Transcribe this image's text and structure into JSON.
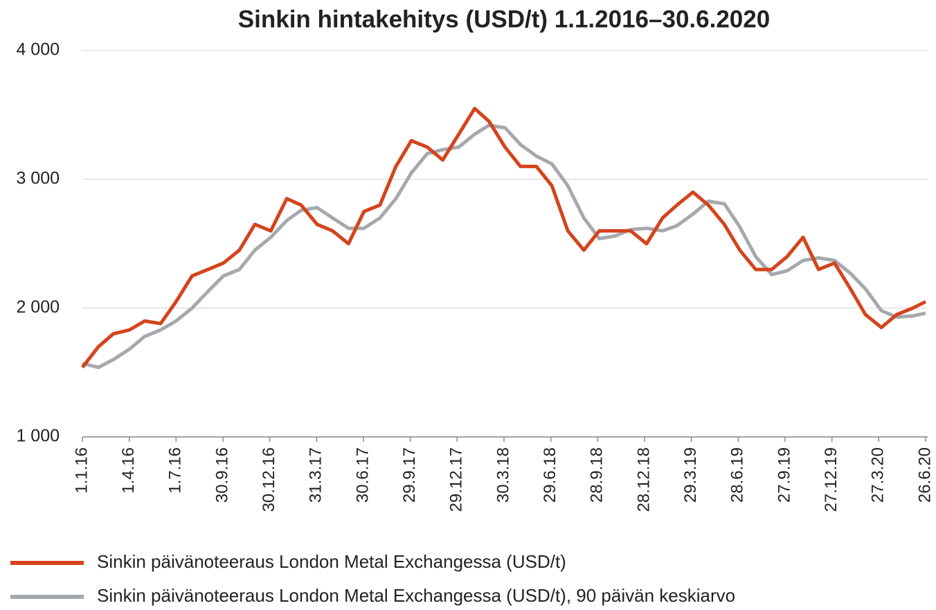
{
  "chart_data": {
    "type": "line",
    "title": "Sinkin hintakehitys (USD/t) 1.1.2016–30.6.2020",
    "x": [
      "1.1.16",
      "1.2.16",
      "1.3.16",
      "1.4.16",
      "1.5.16",
      "1.6.16",
      "1.7.16",
      "1.8.16",
      "1.9.16",
      "1.10.16",
      "1.11.16",
      "1.12.16",
      "1.1.17",
      "1.2.17",
      "1.3.17",
      "1.4.17",
      "1.5.17",
      "1.6.17",
      "1.7.17",
      "1.8.17",
      "1.9.17",
      "1.10.17",
      "1.11.17",
      "1.12.17",
      "1.1.18",
      "1.2.18",
      "1.3.18",
      "1.4.18",
      "1.5.18",
      "1.6.18",
      "1.7.18",
      "1.8.18",
      "1.9.18",
      "1.10.18",
      "1.11.18",
      "1.12.18",
      "1.1.19",
      "1.2.19",
      "1.3.19",
      "1.4.19",
      "1.5.19",
      "1.6.19",
      "1.7.19",
      "1.8.19",
      "1.9.19",
      "1.10.19",
      "1.11.19",
      "1.12.19",
      "1.1.20",
      "1.2.20",
      "1.3.20",
      "1.4.20",
      "1.5.20",
      "1.6.20",
      "26.6.20"
    ],
    "series": [
      {
        "name": "Sinkin päivänoteeraus London Metal Exchangessa (USD/t)",
        "color": "#d4441c",
        "values": [
          1540,
          1700,
          1800,
          1830,
          1900,
          1880,
          2050,
          2250,
          2300,
          2350,
          2450,
          2650,
          2600,
          2850,
          2800,
          2650,
          2600,
          2500,
          2750,
          2800,
          3100,
          3300,
          3250,
          3150,
          3350,
          3550,
          3450,
          3250,
          3100,
          3100,
          2950,
          2600,
          2450,
          2600,
          2600,
          2600,
          2500,
          2700,
          2800,
          2900,
          2800,
          2650,
          2450,
          2300,
          2300,
          2400,
          2550,
          2300,
          2350,
          2150,
          1950,
          1850,
          1950,
          2000,
          2050
        ]
      },
      {
        "name": "Sinkin päivänoteeraus London Metal Exchangessa (USD/t), 90 päivän keskiarvo",
        "color": "#a5a9ad",
        "values": [
          1570,
          1540,
          1600,
          1680,
          1780,
          1830,
          1900,
          2000,
          2130,
          2250,
          2300,
          2450,
          2550,
          2680,
          2760,
          2780,
          2700,
          2620,
          2620,
          2700,
          2850,
          3050,
          3200,
          3230,
          3250,
          3350,
          3420,
          3400,
          3270,
          3180,
          3120,
          2950,
          2700,
          2540,
          2560,
          2610,
          2620,
          2600,
          2640,
          2730,
          2830,
          2810,
          2630,
          2400,
          2260,
          2290,
          2370,
          2390,
          2370,
          2270,
          2150,
          1980,
          1930,
          1940,
          1960
        ]
      }
    ],
    "xlim": [
      "1.1.16",
      "26.6.20"
    ],
    "xticks": [
      "1.1.16",
      "1.4.16",
      "1.7.16",
      "30.9.16",
      "30.12.16",
      "31.3.17",
      "30.6.17",
      "29.9.17",
      "29.12.17",
      "30.3.18",
      "29.6.18",
      "28.9.18",
      "28.12.18",
      "29.3.19",
      "28.6.19",
      "27.9.19",
      "27.12.19",
      "27.3.20",
      "26.6.20"
    ],
    "ylim": [
      1000,
      4000
    ],
    "yticks": [
      {
        "value": 1000,
        "label": "1 000"
      },
      {
        "value": 2000,
        "label": "2 000"
      },
      {
        "value": 3000,
        "label": "3 000"
      },
      {
        "value": 4000,
        "label": "4 000"
      }
    ],
    "grid": true,
    "legend": "bottom"
  }
}
